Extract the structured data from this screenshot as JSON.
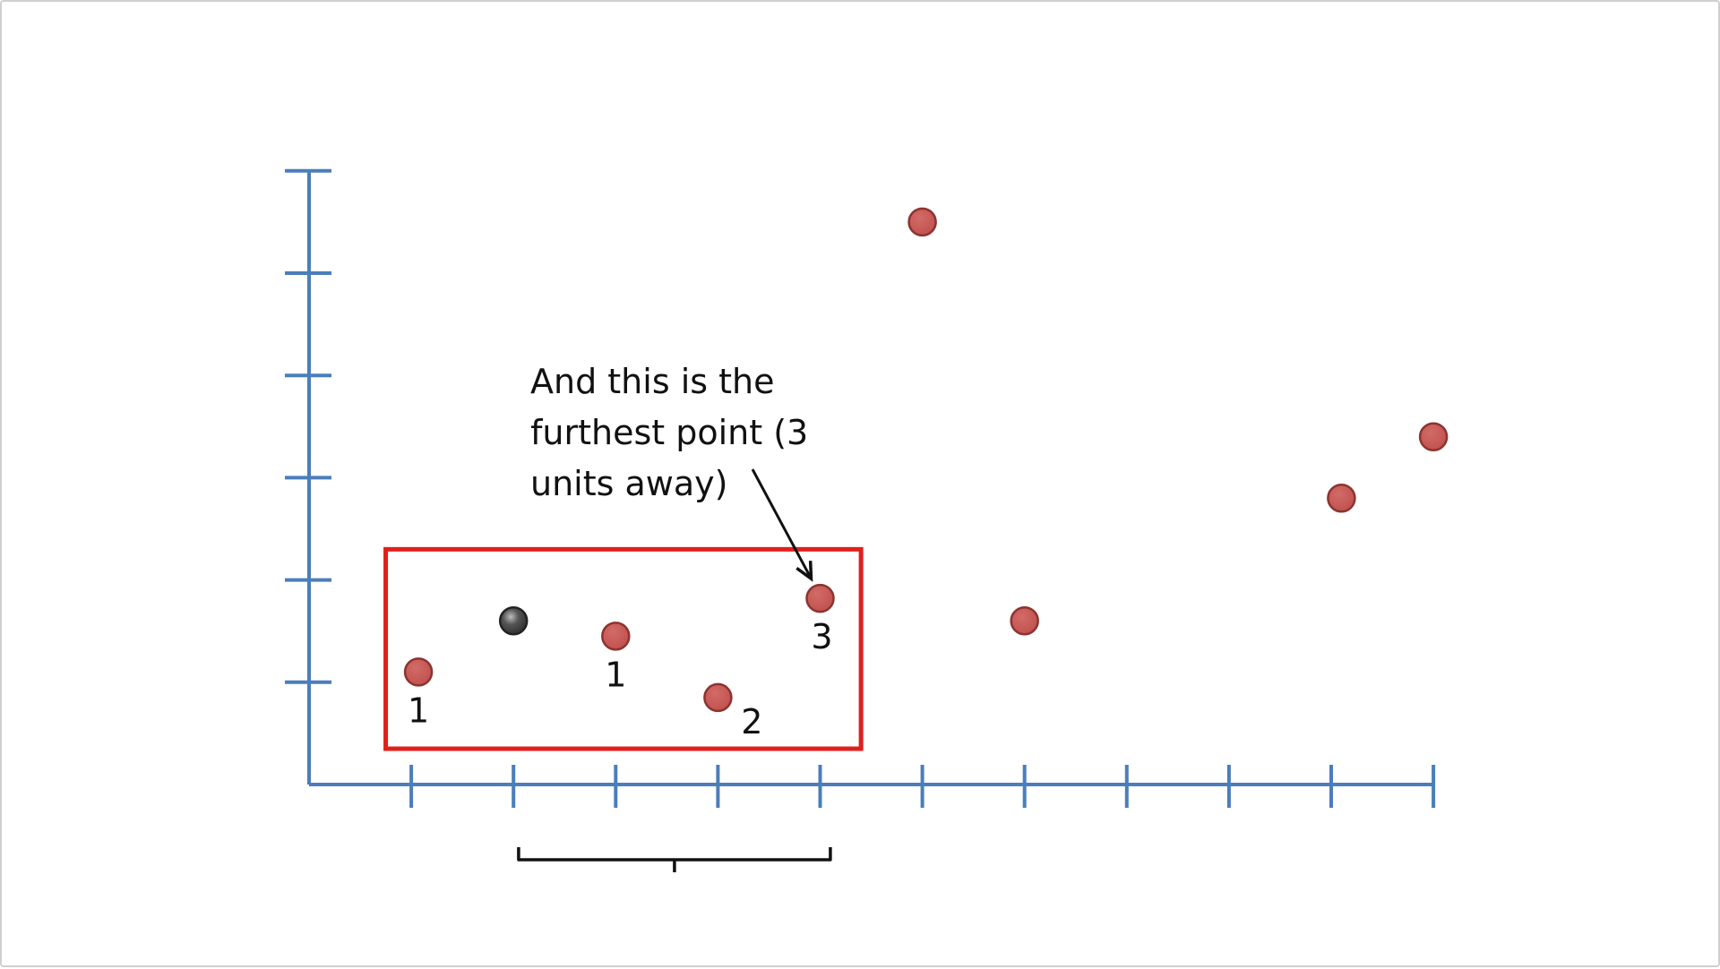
{
  "chart_data": {
    "type": "scatter",
    "title": "",
    "xlabel": "",
    "ylabel": "",
    "xlim": [
      0,
      11
    ],
    "ylim": [
      0,
      6
    ],
    "x_ticks": [
      1,
      2,
      3,
      4,
      5,
      6,
      7,
      8,
      9,
      10,
      11
    ],
    "y_ticks": [
      1,
      2,
      3,
      4,
      5,
      6
    ],
    "grid": false,
    "legend": "none",
    "colors": {
      "axis": "#4a7ebb",
      "point": "#c0504d",
      "point_stroke": "#8c3330",
      "query_point": "#333333",
      "box": "#e0201b",
      "text": "#111111"
    },
    "query_point": {
      "x": 2.0,
      "y": 1.6
    },
    "points": [
      {
        "x": 1.07,
        "y": 1.1,
        "label": "1"
      },
      {
        "x": 3.0,
        "y": 1.45,
        "label": "1"
      },
      {
        "x": 4.0,
        "y": 0.85,
        "label": "2"
      },
      {
        "x": 5.0,
        "y": 1.82,
        "label": "3"
      },
      {
        "x": 6.0,
        "y": 5.5,
        "label": ""
      },
      {
        "x": 7.0,
        "y": 1.6,
        "label": ""
      },
      {
        "x": 10.1,
        "y": 2.8,
        "label": ""
      },
      {
        "x": 11.0,
        "y": 3.4,
        "label": ""
      }
    ],
    "neighborhood_box": {
      "x0": 0.75,
      "x1": 5.4,
      "y0": 0.35,
      "y1": 2.3
    },
    "range_brace": {
      "x0": 2.05,
      "x1": 5.1
    },
    "annotation": {
      "lines": [
        "And this is the",
        "furthest point (3",
        "units away)"
      ],
      "target_point": 3
    }
  }
}
